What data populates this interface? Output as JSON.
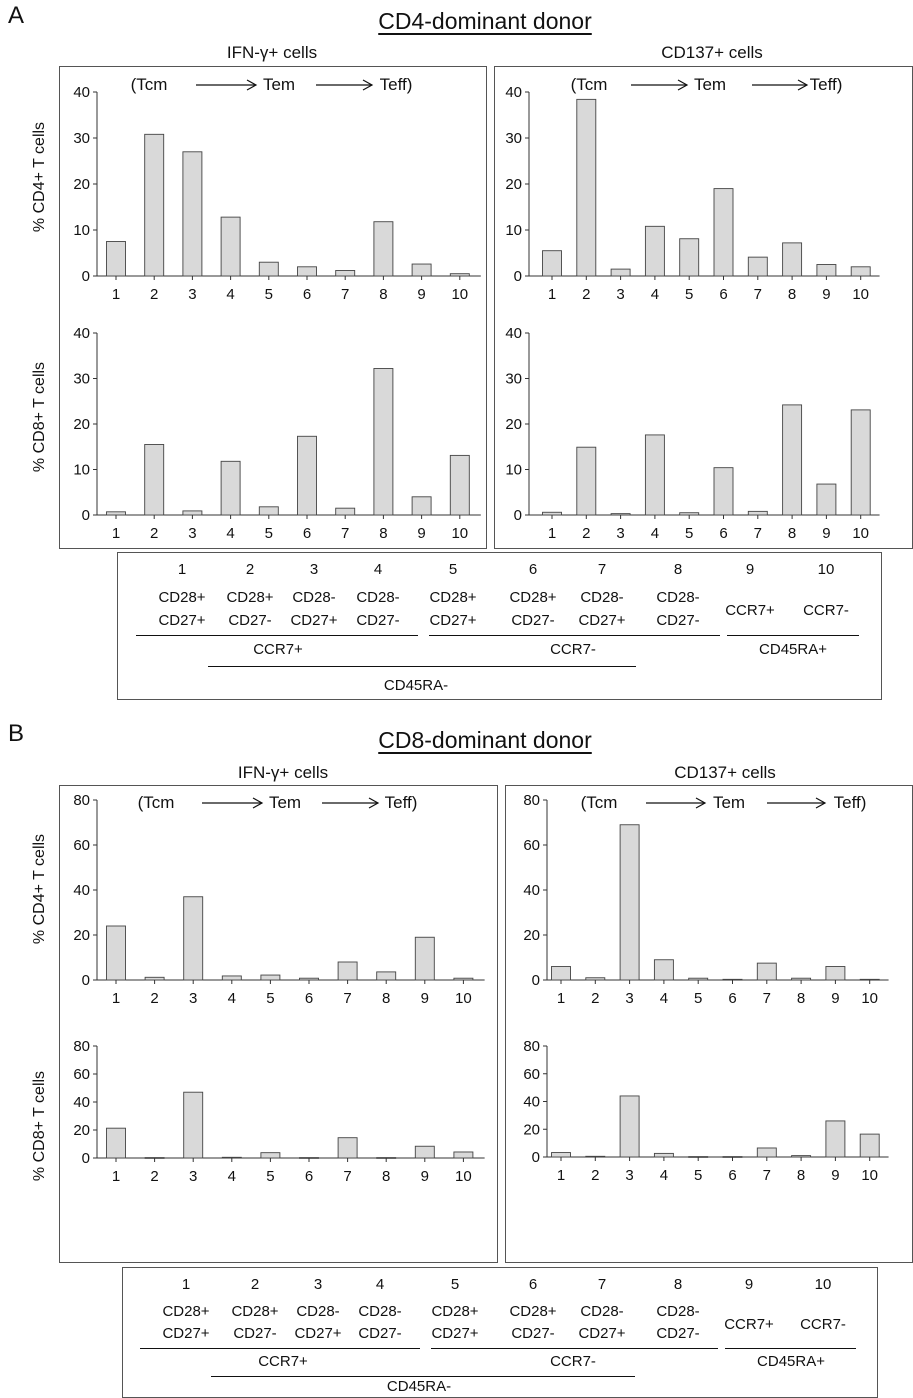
{
  "sections": [
    {
      "letter": "A",
      "title": "CD4-dominant donor",
      "columns": [
        "IFN-γ+ cells",
        "CD137+ cells"
      ],
      "rows": [
        "% CD4+ T cells",
        "% CD8+ T cells"
      ],
      "flow": [
        "(Tcm",
        "Tem",
        "Teff)"
      ]
    },
    {
      "letter": "B",
      "title": "CD8-dominant donor",
      "columns": [
        "IFN-γ+ cells",
        "CD137+ cells"
      ],
      "rows": [
        "% CD4+ T cells",
        "% CD8+ T cells"
      ],
      "flow": [
        "(Tcm",
        "Tem",
        "Teff)"
      ]
    }
  ],
  "legend": {
    "numbers": [
      "1",
      "2",
      "3",
      "4",
      "5",
      "6",
      "7",
      "8",
      "9",
      "10"
    ],
    "line1": [
      "CD28+",
      "CD28+",
      "CD28-",
      "CD28-",
      "CD28+",
      "CD28+",
      "CD28-",
      "CD28-",
      "CCR7+",
      "CCR7-"
    ],
    "line2": [
      "CD27+",
      "CD27-",
      "CD27+",
      "CD27-",
      "CD27+",
      "CD27-",
      "CD27+",
      "CD27-"
    ],
    "ccr7_plus": "CCR7+",
    "ccr7_minus": "CCR7-",
    "cd45ra_plus": "CD45RA+",
    "cd45ra_minus": "CD45RA-"
  },
  "chart_data": [
    {
      "type": "bar",
      "panel": "A",
      "column": "IFN-γ+ cells",
      "ylabel": "% CD4+ T cells",
      "ylim": [
        0,
        40
      ],
      "yticks": [
        0,
        10,
        20,
        30,
        40
      ],
      "categories": [
        "1",
        "2",
        "3",
        "4",
        "5",
        "6",
        "7",
        "8",
        "9",
        "10"
      ],
      "values": [
        7.5,
        30.8,
        27,
        12.8,
        3,
        2,
        1.2,
        11.8,
        2.6,
        0.5
      ],
      "bar_color": "#d9d9d9"
    },
    {
      "type": "bar",
      "panel": "A",
      "column": "CD137+ cells",
      "ylabel": "",
      "ylim": [
        0,
        40
      ],
      "yticks": [
        0,
        10,
        20,
        30,
        40
      ],
      "categories": [
        "1",
        "2",
        "3",
        "4",
        "5",
        "6",
        "7",
        "8",
        "9",
        "10"
      ],
      "values": [
        5.5,
        38.4,
        1.5,
        10.8,
        8.1,
        19,
        4.1,
        7.2,
        2.5,
        2
      ],
      "bar_color": "#d9d9d9"
    },
    {
      "type": "bar",
      "panel": "A",
      "column": "IFN-γ+ cells",
      "ylabel": "% CD8+ T cells",
      "ylim": [
        0,
        40
      ],
      "yticks": [
        0,
        10,
        20,
        30,
        40
      ],
      "categories": [
        "1",
        "2",
        "3",
        "4",
        "5",
        "6",
        "7",
        "8",
        "9",
        "10"
      ],
      "values": [
        0.7,
        15.5,
        0.9,
        11.8,
        1.8,
        17.3,
        1.5,
        32.2,
        4,
        13.1
      ],
      "bar_color": "#d9d9d9"
    },
    {
      "type": "bar",
      "panel": "A",
      "column": "CD137+ cells",
      "ylabel": "",
      "ylim": [
        0,
        40
      ],
      "yticks": [
        0,
        10,
        20,
        30,
        40
      ],
      "categories": [
        "1",
        "2",
        "3",
        "4",
        "5",
        "6",
        "7",
        "8",
        "9",
        "10"
      ],
      "values": [
        0.6,
        14.9,
        0.3,
        17.6,
        0.5,
        10.4,
        0.8,
        24.2,
        6.8,
        23.1
      ],
      "bar_color": "#d9d9d9"
    },
    {
      "type": "bar",
      "panel": "B",
      "column": "IFN-γ+ cells",
      "ylabel": "% CD4+ T cells",
      "ylim": [
        0,
        80
      ],
      "yticks": [
        0,
        20,
        40,
        60,
        80
      ],
      "categories": [
        "1",
        "2",
        "3",
        "4",
        "5",
        "6",
        "7",
        "8",
        "9",
        "10"
      ],
      "values": [
        24,
        1.2,
        37,
        1.8,
        2.2,
        0.8,
        8,
        3.6,
        19,
        0.8
      ],
      "bar_color": "#d9d9d9"
    },
    {
      "type": "bar",
      "panel": "B",
      "column": "CD137+ cells",
      "ylabel": "",
      "ylim": [
        0,
        80
      ],
      "yticks": [
        0,
        20,
        40,
        60,
        80
      ],
      "categories": [
        "1",
        "2",
        "3",
        "4",
        "5",
        "6",
        "7",
        "8",
        "9",
        "10"
      ],
      "values": [
        6,
        1,
        69,
        9,
        0.8,
        0.3,
        7.5,
        0.8,
        6,
        0.3
      ],
      "bar_color": "#d9d9d9"
    },
    {
      "type": "bar",
      "panel": "B",
      "column": "IFN-γ+ cells",
      "ylabel": "% CD8+ T cells",
      "ylim": [
        0,
        80
      ],
      "yticks": [
        0,
        20,
        40,
        60,
        80
      ],
      "categories": [
        "1",
        "2",
        "3",
        "4",
        "5",
        "6",
        "7",
        "8",
        "9",
        "10"
      ],
      "values": [
        21.3,
        0.3,
        47,
        0.5,
        3.8,
        0.3,
        14.5,
        0.3,
        8.4,
        4.3
      ],
      "bar_color": "#d9d9d9"
    },
    {
      "type": "bar",
      "panel": "B",
      "column": "CD137+ cells",
      "ylabel": "",
      "ylim": [
        0,
        80
      ],
      "yticks": [
        0,
        20,
        40,
        60,
        80
      ],
      "categories": [
        "1",
        "2",
        "3",
        "4",
        "5",
        "6",
        "7",
        "8",
        "9",
        "10"
      ],
      "values": [
        3.2,
        0.5,
        44,
        2.6,
        0.3,
        0.3,
        6.5,
        1,
        26,
        16.5
      ],
      "bar_color": "#d9d9d9"
    }
  ]
}
